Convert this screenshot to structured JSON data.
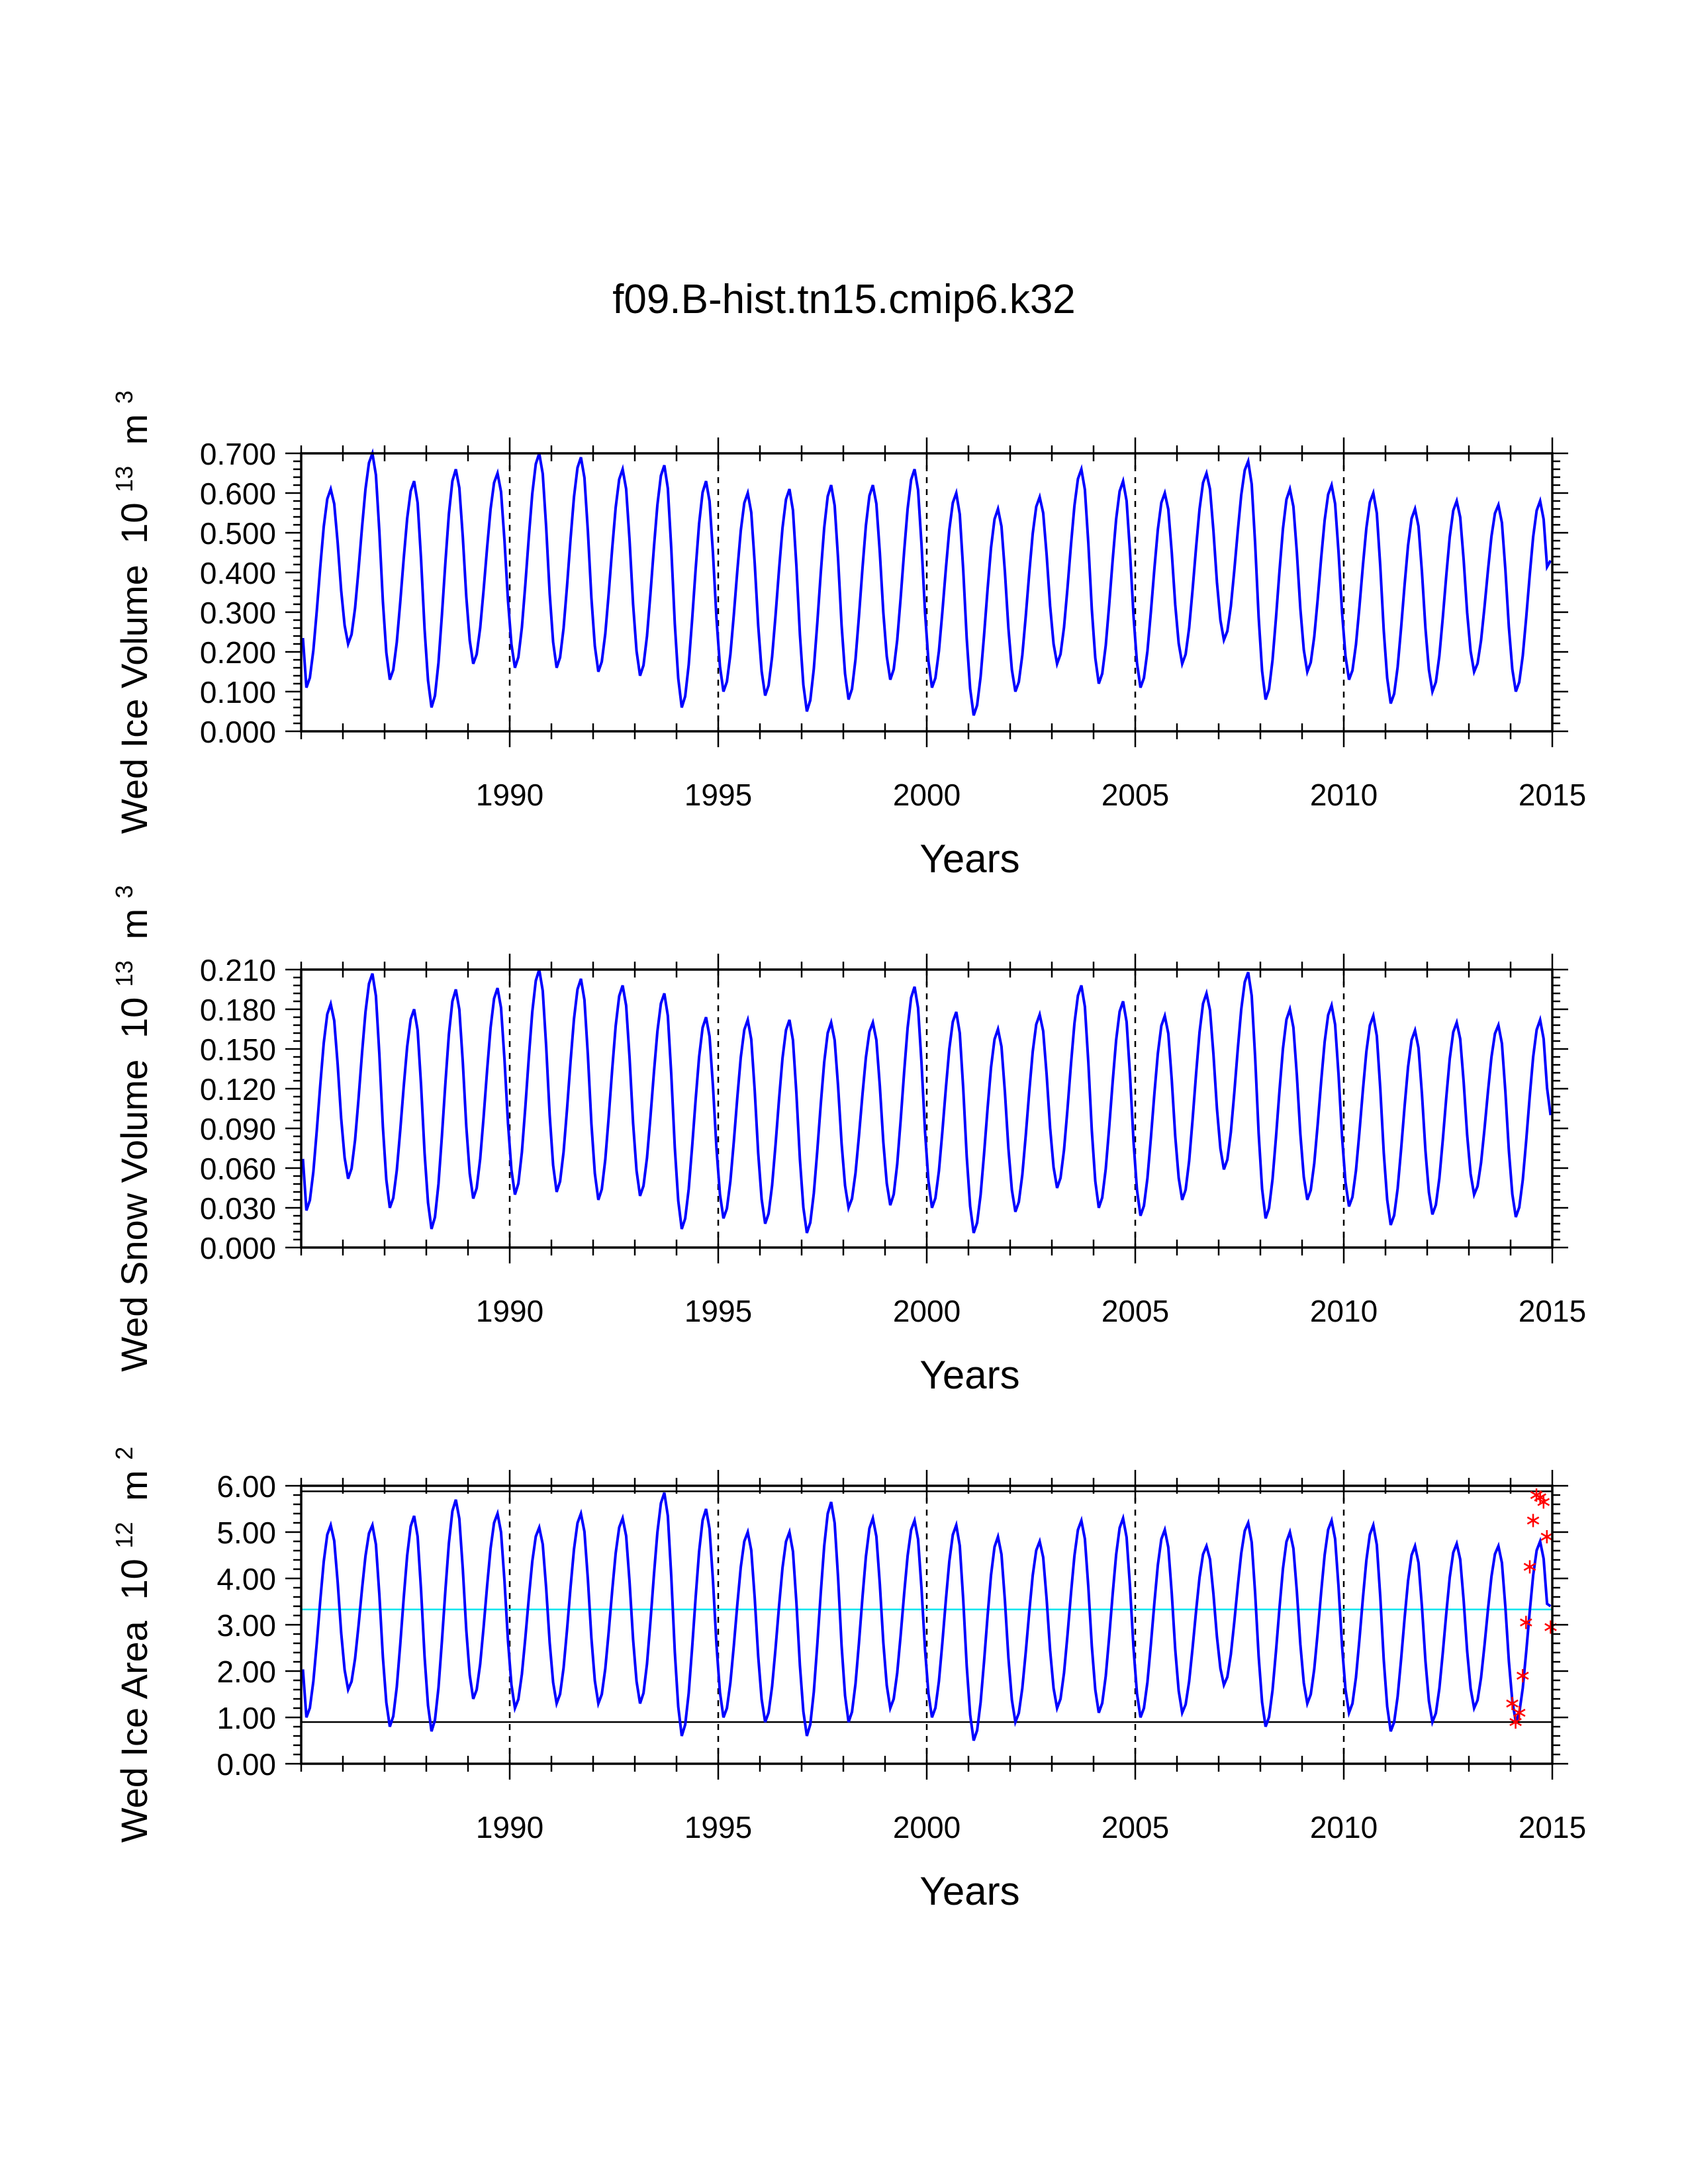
{
  "title": "f09.B-hist.tn15.cmip6.k32",
  "colors": {
    "series": "#0000ff",
    "obs_line": "#00e5ee",
    "obs_markers": "#ff0000",
    "axis": "#000000"
  },
  "chart_data": [
    {
      "type": "line",
      "id": "ice_volume",
      "ylabel": "Wed Ice Volume",
      "ylabel_unit_base": "10",
      "ylabel_unit_exp": "13",
      "ylabel_unit_m": "m",
      "ylabel_unit_m_exp": "3",
      "xlabel": "Years",
      "xlim": [
        1985,
        2015
      ],
      "ylim": [
        0.0,
        0.7
      ],
      "x_ticks": [
        1990,
        1995,
        2000,
        2005,
        2010,
        2015
      ],
      "x_tick_labels": [
        "1990",
        "1995",
        "2000",
        "2005",
        "2010",
        "2015"
      ],
      "y_ticks": [
        0.0,
        0.1,
        0.2,
        0.3,
        0.4,
        0.5,
        0.6,
        0.7
      ],
      "y_tick_labels": [
        "0.000",
        "0.100",
        "0.200",
        "0.300",
        "0.400",
        "0.500",
        "0.600",
        "0.700"
      ],
      "vlines": [
        1990,
        1995,
        2000,
        2005,
        2010
      ],
      "series": [
        {
          "name": "Wed Ice Volume",
          "year_start": 1985,
          "minima": [
            0.11,
            0.22,
            0.13,
            0.06,
            0.17,
            0.16,
            0.16,
            0.15,
            0.14,
            0.06,
            0.1,
            0.09,
            0.05,
            0.08,
            0.13,
            0.11,
            0.04,
            0.1,
            0.17,
            0.12,
            0.11,
            0.17,
            0.23,
            0.08,
            0.15,
            0.13,
            0.07,
            0.1,
            0.15,
            0.1
          ],
          "maxima": [
            0.61,
            0.7,
            0.63,
            0.66,
            0.65,
            0.7,
            0.69,
            0.66,
            0.67,
            0.63,
            0.6,
            0.61,
            0.62,
            0.62,
            0.66,
            0.6,
            0.56,
            0.59,
            0.66,
            0.63,
            0.6,
            0.65,
            0.68,
            0.61,
            0.62,
            0.6,
            0.56,
            0.58,
            0.57,
            0.58
          ],
          "final_value": 0.43
        }
      ]
    },
    {
      "type": "line",
      "id": "snow_volume",
      "ylabel": "Wed Snow Volume",
      "ylabel_unit_base": "10",
      "ylabel_unit_exp": "13",
      "ylabel_unit_m": "m",
      "ylabel_unit_m_exp": "3",
      "xlabel": "Years",
      "xlim": [
        1985,
        2015
      ],
      "ylim": [
        0.0,
        0.21
      ],
      "x_ticks": [
        1990,
        1995,
        2000,
        2005,
        2010,
        2015
      ],
      "x_tick_labels": [
        "1990",
        "1995",
        "2000",
        "2005",
        "2010",
        "2015"
      ],
      "y_ticks": [
        0.0,
        0.03,
        0.06,
        0.09,
        0.12,
        0.15,
        0.18,
        0.21
      ],
      "y_tick_labels": [
        "0.000",
        "0.030",
        "0.060",
        "0.090",
        "0.120",
        "0.150",
        "0.180",
        "0.210"
      ],
      "vlines": [
        1990,
        1995,
        2000,
        2005,
        2010
      ],
      "series": [
        {
          "name": "Wed Snow Volume",
          "year_start": 1985,
          "minima": [
            0.028,
            0.052,
            0.03,
            0.014,
            0.037,
            0.04,
            0.042,
            0.036,
            0.039,
            0.014,
            0.022,
            0.018,
            0.011,
            0.03,
            0.032,
            0.03,
            0.011,
            0.027,
            0.045,
            0.03,
            0.024,
            0.036,
            0.059,
            0.022,
            0.036,
            0.031,
            0.017,
            0.025,
            0.04,
            0.023
          ],
          "maxima": [
            0.184,
            0.207,
            0.18,
            0.195,
            0.196,
            0.21,
            0.203,
            0.198,
            0.192,
            0.174,
            0.172,
            0.172,
            0.17,
            0.17,
            0.197,
            0.178,
            0.165,
            0.176,
            0.198,
            0.186,
            0.175,
            0.192,
            0.208,
            0.18,
            0.183,
            0.175,
            0.164,
            0.17,
            0.168,
            0.172
          ],
          "final_value": 0.1
        }
      ]
    },
    {
      "type": "line",
      "id": "ice_area",
      "ylabel": "Wed Ice Area",
      "ylabel_unit_base": "10",
      "ylabel_unit_exp": "12",
      "ylabel_unit_m": "m",
      "ylabel_unit_m_exp": "2",
      "xlabel": "Years",
      "xlim": [
        1985,
        2015
      ],
      "ylim": [
        0.0,
        6.0
      ],
      "x_ticks": [
        1990,
        1995,
        2000,
        2005,
        2010,
        2015
      ],
      "x_tick_labels": [
        "1990",
        "1995",
        "2000",
        "2005",
        "2010",
        "2015"
      ],
      "y_ticks": [
        0,
        1,
        2,
        3,
        4,
        5,
        6
      ],
      "y_tick_labels": [
        "0.00",
        "1.00",
        "2.00",
        "3.00",
        "4.00",
        "5.00",
        "6.00"
      ],
      "vlines": [
        1990,
        1995,
        2000,
        2005,
        2010
      ],
      "hlines": [
        {
          "y": 5.88,
          "color": "#000000"
        },
        {
          "y": 0.9,
          "color": "#000000"
        },
        {
          "y": 3.33,
          "color": "#00e5ee"
        }
      ],
      "series": [
        {
          "name": "Wed Ice Area",
          "year_start": 1985,
          "minima": [
            1.0,
            1.6,
            0.8,
            0.7,
            1.4,
            1.2,
            1.3,
            1.3,
            1.3,
            0.6,
            1.0,
            0.9,
            0.6,
            0.9,
            1.2,
            1.0,
            0.5,
            0.9,
            1.2,
            1.1,
            1.0,
            1.1,
            1.7,
            0.8,
            1.3,
            1.1,
            0.7,
            0.9,
            1.2,
            0.9
          ],
          "maxima": [
            5.15,
            5.15,
            5.35,
            5.7,
            5.4,
            5.1,
            5.4,
            5.3,
            5.85,
            5.5,
            5.0,
            5.0,
            5.65,
            5.3,
            5.25,
            5.15,
            4.9,
            4.8,
            5.25,
            5.3,
            5.05,
            4.7,
            5.2,
            5.0,
            5.25,
            5.15,
            4.7,
            4.75,
            4.7,
            4.8
          ],
          "final_value": 3.4
        }
      ],
      "observations": {
        "name": "obs",
        "x": [
          2014.04,
          2014.12,
          2014.21,
          2014.29,
          2014.37,
          2014.46,
          2014.54,
          2014.62,
          2014.71,
          2014.79,
          2014.87,
          2014.96
        ],
        "y": [
          1.3,
          0.9,
          1.1,
          1.9,
          3.05,
          4.25,
          5.25,
          5.8,
          5.75,
          5.65,
          4.9,
          2.95
        ]
      }
    }
  ]
}
